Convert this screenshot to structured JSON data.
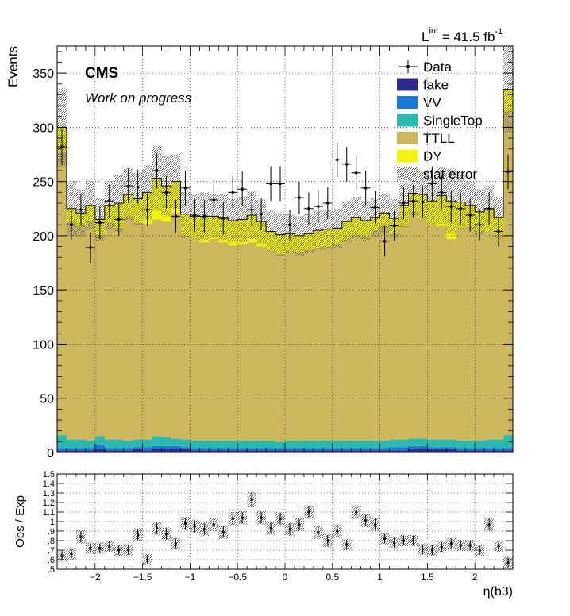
{
  "header": {
    "lumi_prefix": "L",
    "lumi_sup": "int",
    "lumi_value": " = 41.5 fb",
    "lumi_unit_sup": "-1"
  },
  "labels": {
    "cms": "CMS",
    "subtitle": "Work on progress"
  },
  "colors": {
    "fake": "#2e2a8c",
    "VV": "#1c78d8",
    "SingleTop": "#2ab8b0",
    "TTLL": "#cbb85e",
    "DY": "#f5f50a",
    "stat_error": "#6e6e6e",
    "data": "#000000"
  },
  "legend": {
    "placement": "top-right",
    "entries": [
      {
        "key": "data",
        "label": "Data",
        "style": "marker"
      },
      {
        "key": "fake",
        "label": "fake",
        "style": "box"
      },
      {
        "key": "VV",
        "label": "VV",
        "style": "box"
      },
      {
        "key": "SingleTop",
        "label": "SingleTop",
        "style": "box"
      },
      {
        "key": "TTLL",
        "label": "TTLL",
        "style": "box"
      },
      {
        "key": "DY",
        "label": "DY",
        "style": "box"
      },
      {
        "key": "stat_error",
        "label": "stat error",
        "style": "hatch"
      }
    ]
  },
  "chart_data": [
    {
      "type": "bar",
      "stacked": true,
      "ylabel": "Events",
      "xlim": [
        -2.4,
        2.4
      ],
      "ylim": [
        0,
        375
      ],
      "yticks": [
        0,
        50,
        100,
        150,
        200,
        250,
        300,
        350
      ],
      "grid": true,
      "n_bins": 48,
      "bin_width": 0.1,
      "series": [
        {
          "name": "fake",
          "values": [
            2,
            2,
            2,
            2,
            3,
            2,
            2,
            2,
            3,
            2,
            3,
            3,
            3,
            3,
            2,
            2,
            2,
            2,
            2,
            2,
            2,
            2,
            2,
            2,
            2,
            2,
            2,
            2,
            2,
            2,
            2,
            2,
            2,
            2,
            2,
            2,
            2,
            3,
            3,
            3,
            3,
            3,
            2,
            2,
            2,
            2,
            2,
            2
          ]
        },
        {
          "name": "VV",
          "values": [
            2,
            2,
            2,
            2,
            4,
            2,
            2,
            2,
            2,
            3,
            3,
            3,
            3,
            2,
            2,
            2,
            2,
            2,
            2,
            2,
            2,
            2,
            2,
            2,
            2,
            2,
            2,
            2,
            2,
            2,
            2,
            2,
            2,
            2,
            2,
            3,
            3,
            3,
            3,
            2,
            2,
            2,
            2,
            2,
            2,
            2,
            2,
            2
          ]
        },
        {
          "name": "SingleTop",
          "values": [
            12,
            8,
            8,
            7,
            8,
            8,
            8,
            7,
            7,
            7,
            9,
            8,
            7,
            7,
            7,
            7,
            7,
            7,
            7,
            7,
            7,
            7,
            7,
            6,
            7,
            7,
            7,
            7,
            7,
            7,
            7,
            7,
            7,
            7,
            7,
            7,
            7,
            7,
            7,
            7,
            7,
            7,
            7,
            7,
            7,
            8,
            8,
            12
          ]
        },
        {
          "name": "TTLL",
          "values": [
            262,
            201,
            197,
            203,
            186,
            200,
            195,
            207,
            200,
            199,
            200,
            199,
            208,
            188,
            187,
            183,
            186,
            183,
            180,
            181,
            183,
            179,
            175,
            173,
            175,
            174,
            176,
            178,
            179,
            181,
            186,
            190,
            188,
            194,
            198,
            190,
            197,
            209,
            203,
            198,
            197,
            185,
            196,
            197,
            193,
            192,
            189,
            299
          ]
        },
        {
          "name": "DY",
          "values": [
            22,
            12,
            12,
            14,
            14,
            16,
            23,
            20,
            22,
            29,
            38,
            33,
            29,
            20,
            20,
            24,
            21,
            23,
            23,
            23,
            25,
            23,
            18,
            18,
            16,
            15,
            15,
            16,
            16,
            15,
            16,
            16,
            15,
            12,
            12,
            14,
            19,
            17,
            22,
            22,
            28,
            35,
            24,
            20,
            18,
            21,
            16,
            20
          ]
        }
      ],
      "stat_error": [
        36,
        25,
        22,
        22,
        20,
        22,
        26,
        24,
        24,
        25,
        30,
        28,
        25,
        22,
        20,
        22,
        20,
        21,
        20,
        21,
        22,
        20,
        19,
        20,
        18,
        18,
        18,
        18,
        18,
        18,
        19,
        19,
        18,
        18,
        18,
        18,
        20,
        20,
        22,
        22,
        26,
        30,
        25,
        22,
        21,
        21,
        19,
        40
      ],
      "data": {
        "name": "Data",
        "x": [
          -2.35,
          -2.25,
          -2.15,
          -2.05,
          -1.95,
          -1.85,
          -1.75,
          -1.65,
          -1.55,
          -1.45,
          -1.35,
          -1.25,
          -1.15,
          -1.05,
          -0.95,
          -0.85,
          -0.75,
          -0.65,
          -0.55,
          -0.45,
          -0.35,
          -0.25,
          -0.15,
          -0.05,
          0.05,
          0.15,
          0.25,
          0.35,
          0.45,
          0.55,
          0.65,
          0.75,
          0.85,
          0.95,
          1.05,
          1.15,
          1.25,
          1.35,
          1.45,
          1.55,
          1.65,
          1.75,
          1.85,
          1.95,
          2.05,
          2.15,
          2.25,
          2.35
        ],
        "y": [
          282,
          210,
          224,
          189,
          212,
          232,
          215,
          246,
          245,
          224,
          260,
          240,
          218,
          244,
          219,
          218,
          233,
          216,
          240,
          243,
          224,
          220,
          248,
          248,
          210,
          235,
          225,
          227,
          230,
          270,
          266,
          258,
          244,
          226,
          195,
          209,
          230,
          232,
          231,
          248,
          240,
          227,
          225,
          219,
          210,
          225,
          204,
          259
        ],
        "err": [
          17,
          14,
          15,
          14,
          15,
          15,
          15,
          16,
          16,
          15,
          16,
          15,
          15,
          16,
          15,
          15,
          15,
          15,
          15,
          16,
          15,
          15,
          16,
          16,
          14,
          15,
          15,
          15,
          15,
          16,
          16,
          16,
          16,
          15,
          14,
          14,
          15,
          15,
          15,
          16,
          15,
          15,
          15,
          15,
          14,
          15,
          14,
          16
        ]
      }
    },
    {
      "type": "scatter",
      "ylabel": "Obs / Exp",
      "xlabel": "η(b3)",
      "xlim": [
        -2.4,
        2.4
      ],
      "ylim": [
        0.5,
        1.5
      ],
      "xticks": [
        -2,
        -1.5,
        -1,
        -0.5,
        0,
        0.5,
        1,
        1.5,
        2
      ],
      "yticks": [
        0.5,
        0.6,
        0.7,
        0.8,
        0.9,
        1,
        1.1,
        1.2,
        1.3,
        1.4,
        1.5
      ],
      "grid": true,
      "x": [
        -2.35,
        -2.25,
        -2.15,
        -2.05,
        -1.95,
        -1.85,
        -1.75,
        -1.65,
        -1.55,
        -1.45,
        -1.35,
        -1.25,
        -1.15,
        -1.05,
        -0.95,
        -0.85,
        -0.75,
        -0.65,
        -0.55,
        -0.45,
        -0.35,
        -0.25,
        -0.15,
        -0.05,
        0.05,
        0.15,
        0.25,
        0.35,
        0.45,
        0.55,
        0.65,
        0.75,
        0.85,
        0.95,
        1.05,
        1.15,
        1.25,
        1.35,
        1.45,
        1.55,
        1.65,
        1.75,
        1.85,
        1.95,
        2.05,
        2.15,
        2.25,
        2.35
      ],
      "y": [
        0.64,
        0.66,
        0.84,
        0.72,
        0.72,
        0.74,
        0.7,
        0.7,
        0.86,
        0.6,
        0.93,
        0.87,
        0.77,
        0.98,
        0.95,
        0.92,
        0.97,
        0.89,
        1.03,
        1.04,
        1.23,
        1.04,
        0.93,
        1.03,
        0.92,
        0.97,
        1.1,
        0.89,
        0.8,
        0.9,
        0.76,
        1.1,
        1.01,
        0.97,
        0.82,
        0.78,
        0.8,
        0.8,
        0.71,
        0.7,
        0.73,
        0.77,
        0.75,
        0.75,
        0.7,
        0.97,
        0.74,
        0.57
      ],
      "err": [
        0.05,
        0.05,
        0.06,
        0.05,
        0.05,
        0.05,
        0.05,
        0.05,
        0.06,
        0.05,
        0.06,
        0.06,
        0.05,
        0.06,
        0.06,
        0.06,
        0.06,
        0.06,
        0.06,
        0.06,
        0.07,
        0.06,
        0.06,
        0.06,
        0.06,
        0.06,
        0.06,
        0.06,
        0.06,
        0.06,
        0.05,
        0.06,
        0.06,
        0.06,
        0.05,
        0.05,
        0.05,
        0.05,
        0.05,
        0.05,
        0.05,
        0.05,
        0.05,
        0.05,
        0.05,
        0.06,
        0.05,
        0.05
      ],
      "band": [
        0.06,
        0.06,
        0.07,
        0.06,
        0.06,
        0.06,
        0.06,
        0.06,
        0.07,
        0.06,
        0.07,
        0.07,
        0.06,
        0.07,
        0.07,
        0.07,
        0.07,
        0.07,
        0.07,
        0.07,
        0.08,
        0.07,
        0.07,
        0.07,
        0.07,
        0.07,
        0.07,
        0.07,
        0.07,
        0.07,
        0.06,
        0.07,
        0.07,
        0.07,
        0.06,
        0.06,
        0.06,
        0.06,
        0.06,
        0.06,
        0.06,
        0.06,
        0.06,
        0.06,
        0.06,
        0.07,
        0.06,
        0.06
      ]
    }
  ]
}
